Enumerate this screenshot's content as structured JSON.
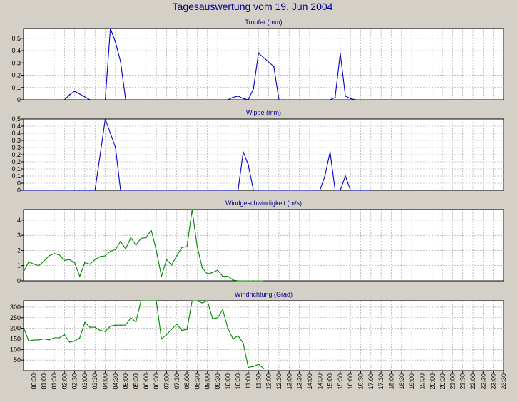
{
  "page_title": "Tagesauswertung vom 19. Jun 2004",
  "colors": {
    "background": "#d4d0c8",
    "plot_background": "#ffffff",
    "grid": "#9a9a9a",
    "title_text": "#00008b",
    "rain_series": "#0000cc",
    "wind_series": "#008800"
  },
  "x_ticks": [
    "00:30",
    "01:00",
    "01:30",
    "02:00",
    "02:30",
    "03:00",
    "03:30",
    "04:00",
    "04:30",
    "05:00",
    "05:30",
    "06:00",
    "06:30",
    "07:00",
    "07:30",
    "08:00",
    "08:30",
    "09:00",
    "09:30",
    "10:00",
    "10:30",
    "11:00",
    "11:30",
    "12:00",
    "12:30",
    "13:00",
    "13:30",
    "14:00",
    "14:30",
    "15:00",
    "15:30",
    "16:00",
    "16:30",
    "17:00",
    "17:30",
    "18:00",
    "18:30",
    "19:00",
    "19:30",
    "20:00",
    "20:30",
    "21:00",
    "21:30",
    "22:00",
    "22:30",
    "23:00",
    "23:30"
  ],
  "chart_data": [
    {
      "type": "line",
      "title": "Tropfer (mm)",
      "ylim": [
        0,
        0.58
      ],
      "yticks": [
        0,
        0.1,
        0.2,
        0.3,
        0.4,
        0.5
      ],
      "ytick_labels": [
        "0",
        "0,1",
        "0,2",
        "0,3",
        "0,4",
        "0,5"
      ],
      "grid": true,
      "series": [
        {
          "color": "#0000cc",
          "x": [
            0,
            4.0,
            4.5,
            5.0,
            6.5,
            7.0,
            8.0,
            8.5,
            9.0,
            9.5,
            10.0,
            11.0,
            11.5,
            12.0,
            12.5,
            13.0,
            20.0,
            20.5,
            21.0,
            21.5,
            22.0,
            22.5,
            23.0,
            24.5,
            25.0,
            25.5,
            26.0,
            26.5,
            27.0,
            27.5,
            28.0,
            30.0,
            30.5,
            31.0,
            31.5,
            32.0,
            32.5,
            33.0,
            34.0
          ],
          "y": [
            0,
            0,
            0.04,
            0.07,
            0,
            0,
            0,
            0.58,
            0.47,
            0.31,
            0,
            0,
            0,
            0,
            0,
            0,
            0,
            0.02,
            0.03,
            0.01,
            0,
            0.09,
            0.38,
            0.27,
            0,
            0,
            0,
            0,
            0,
            0,
            0,
            0,
            0.02,
            0.38,
            0.03,
            0.01,
            0,
            0,
            0
          ]
        }
      ]
    },
    {
      "type": "line",
      "title": "Wippe (mm)",
      "ylim": [
        0,
        0.5
      ],
      "yticks": [
        0,
        0.05,
        0.1,
        0.15,
        0.2,
        0.25,
        0.3,
        0.35,
        0.4,
        0.45,
        0.5
      ],
      "ytick_labels": [
        "0",
        "0",
        "0,1",
        "0,1",
        "0,2",
        "0,2",
        "0,3",
        "0,3",
        "0,4",
        "0,4",
        "0,5"
      ],
      "grid": true,
      "series": [
        {
          "color": "#0000cc",
          "x": [
            0,
            5.0,
            5.5,
            6.0,
            6.5,
            7.0,
            8.0,
            9.0,
            9.5,
            10.0,
            11.0,
            12.0,
            20.0,
            21.0,
            21.5,
            22.0,
            22.5,
            23.0,
            28.5,
            29.0,
            29.5,
            30.0,
            30.5,
            31.0,
            31.5,
            32.0,
            33.0,
            34.0
          ],
          "y": [
            0,
            0,
            0,
            0,
            0,
            0,
            0.5,
            0.3,
            0,
            0,
            0,
            0,
            0,
            0,
            0.27,
            0.18,
            0,
            0,
            0,
            0,
            0.1,
            0.27,
            0,
            0,
            0.1,
            0,
            0,
            0
          ]
        }
      ]
    },
    {
      "type": "line",
      "title": "Windgeschwindigkeit (m/s)",
      "ylim": [
        0,
        4.7
      ],
      "yticks": [
        0,
        1,
        2,
        3,
        4
      ],
      "ytick_labels": [
        "0",
        "1",
        "2",
        "3",
        "4"
      ],
      "grid": true,
      "series": [
        {
          "color": "#008800",
          "x": [
            0,
            0.5,
            1.0,
            1.5,
            2.0,
            2.5,
            3.0,
            3.5,
            4.0,
            4.5,
            5.0,
            5.5,
            6.0,
            6.5,
            7.0,
            7.5,
            8.0,
            8.5,
            9.0,
            9.5,
            10.0,
            10.5,
            11.0,
            11.5,
            12.0,
            12.5,
            13.0,
            13.5,
            14.0,
            14.5,
            15.0,
            15.5,
            16.0,
            16.5,
            17.0,
            17.5,
            18.0,
            18.5,
            19.0,
            19.5,
            20.0,
            20.5,
            21.0,
            21.5,
            22.0,
            22.5,
            23.0,
            23.5
          ],
          "y": [
            0.6,
            1.25,
            1.1,
            1.0,
            1.3,
            1.65,
            1.8,
            1.7,
            1.35,
            1.4,
            1.2,
            0.3,
            1.2,
            1.1,
            1.4,
            1.6,
            1.65,
            1.95,
            2.05,
            2.6,
            2.1,
            2.85,
            2.35,
            2.8,
            2.85,
            3.35,
            2.0,
            0.3,
            1.4,
            1.05,
            1.65,
            2.2,
            2.25,
            4.7,
            2.25,
            0.85,
            0.45,
            0.55,
            0.7,
            0.3,
            0.3,
            0.05,
            0,
            0,
            0,
            0,
            0,
            0
          ]
        }
      ]
    },
    {
      "type": "line",
      "title": "Windrichtung (Grad)",
      "ylim": [
        0,
        330
      ],
      "yticks": [
        50,
        100,
        150,
        200,
        250,
        300
      ],
      "ytick_labels": [
        "50",
        "100",
        "150",
        "200",
        "250",
        "300"
      ],
      "grid": true,
      "series": [
        {
          "color": "#008800",
          "x": [
            0,
            0.5,
            1.0,
            1.5,
            2.0,
            2.5,
            3.0,
            3.5,
            4.0,
            4.5,
            5.0,
            5.5,
            6.0,
            6.5,
            7.0,
            7.5,
            8.0,
            8.5,
            9.0,
            9.5,
            10.0,
            10.5,
            11.0,
            11.5,
            12.0,
            12.5,
            13.0,
            13.5,
            14.0,
            14.5,
            15.0,
            15.5,
            16.0,
            16.5,
            17.0,
            17.5,
            18.0,
            18.5,
            19.0,
            19.5,
            20.0,
            20.5,
            21.0,
            21.5,
            22.0,
            22.5,
            23.0,
            23.5
          ],
          "y": [
            205,
            140,
            145,
            145,
            150,
            145,
            155,
            155,
            170,
            135,
            140,
            155,
            228,
            205,
            205,
            190,
            185,
            210,
            215,
            215,
            215,
            250,
            230,
            330,
            330,
            330,
            330,
            150,
            170,
            195,
            220,
            190,
            195,
            330,
            330,
            320,
            330,
            245,
            250,
            288,
            200,
            150,
            165,
            130,
            15,
            20,
            30,
            10
          ]
        }
      ]
    }
  ]
}
